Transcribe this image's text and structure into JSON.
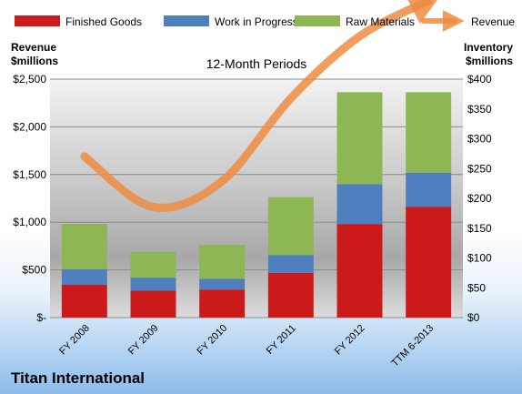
{
  "chart_data": {
    "type": "bar",
    "title": "12-Month Periods",
    "company": "Titan International",
    "categories": [
      "FY 2008",
      "FY 2009",
      "FY 2010",
      "FY 2011",
      "FY 2012",
      "TTM 6-2013"
    ],
    "stack_series": [
      {
        "name": "Finished Goods",
        "color": "#cc1a1a",
        "values": [
          55,
          45,
          47,
          75,
          157,
          186
        ]
      },
      {
        "name": "Work in Progress",
        "color": "#4f7fbf",
        "values": [
          26,
          22,
          18,
          30,
          67,
          57
        ]
      },
      {
        "name": "Raw Materials",
        "color": "#8db654",
        "values": [
          76,
          43,
          57,
          97,
          154,
          135
        ]
      }
    ],
    "line_series": {
      "name": "Revenue",
      "color": "#ed8c42",
      "axis": "left",
      "values": [
        1690,
        1160,
        1430,
        2300,
        2950,
        3320
      ]
    },
    "left_axis": {
      "label_line1": "Revenue",
      "label_line2": "$millions",
      "min": 0,
      "max": 2500,
      "ticks": [
        0,
        500,
        1000,
        1500,
        2000,
        2500
      ],
      "tick_labels": [
        "$-",
        "$500",
        "$1,000",
        "$1,500",
        "$2,000",
        "$2,500"
      ]
    },
    "right_axis": {
      "label_line1": "Inventory",
      "label_line2": "$millions",
      "min": 0,
      "max": 400,
      "ticks": [
        0,
        50,
        100,
        150,
        200,
        250,
        300,
        350,
        400
      ],
      "tick_labels": [
        "$0",
        "$50",
        "$100",
        "$150",
        "$200",
        "$250",
        "$300",
        "$350",
        "$400"
      ]
    },
    "legend_position": "top",
    "grid": true
  }
}
